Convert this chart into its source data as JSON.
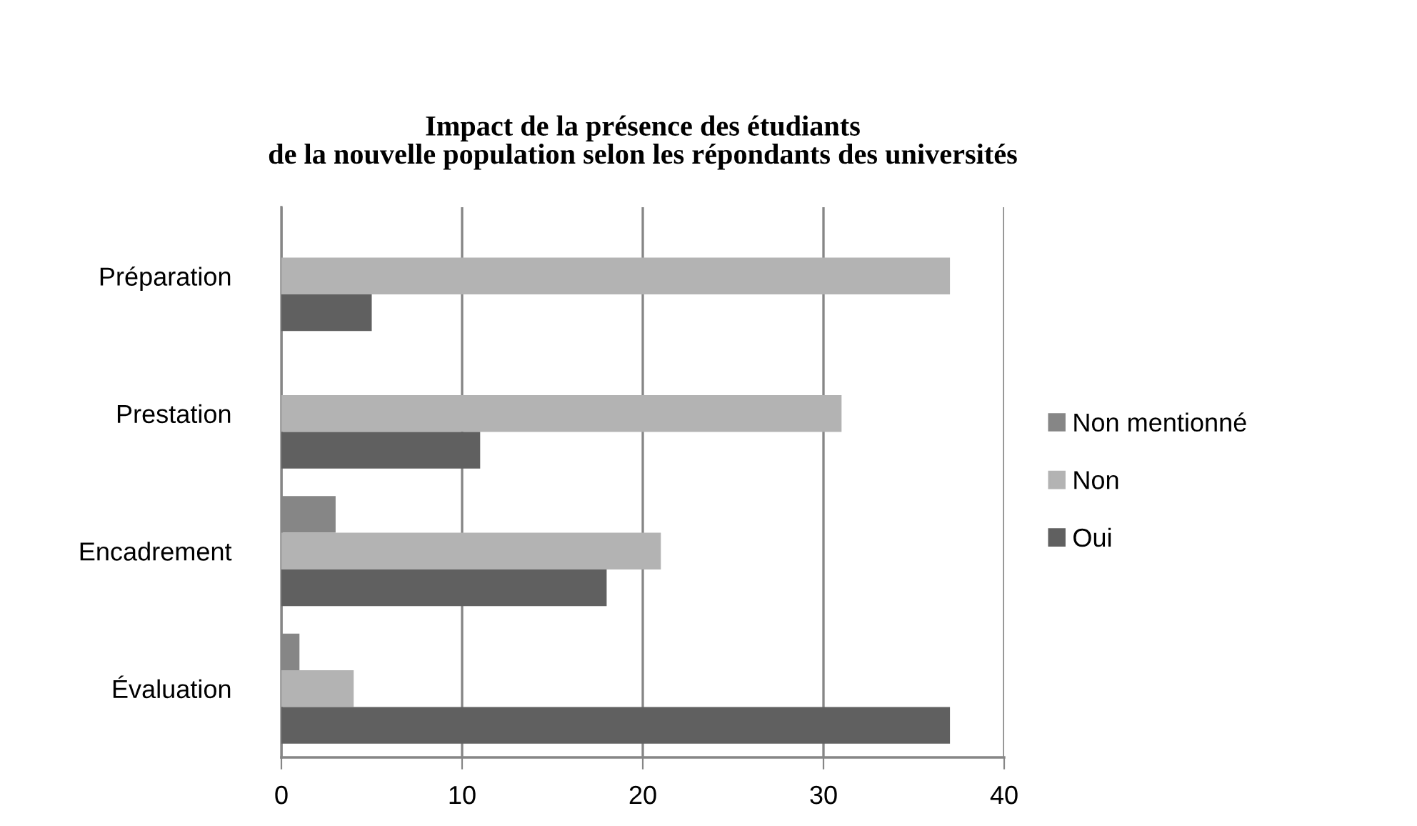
{
  "chart_data": {
    "type": "bar",
    "orientation": "horizontal",
    "title": "Impact de la présence des étudiants\nde la nouvelle population selon les répondants des universités",
    "categories": [
      "Préparation",
      "Prestation",
      "Encadrement",
      "Évaluation"
    ],
    "series": [
      {
        "name": "Non mentionné",
        "color": "#868686",
        "values": [
          0,
          0,
          3,
          1
        ]
      },
      {
        "name": "Non",
        "color": "#b3b3b3",
        "values": [
          37,
          31,
          21,
          4
        ]
      },
      {
        "name": "Oui",
        "color": "#606060",
        "values": [
          5,
          11,
          18,
          37
        ]
      }
    ],
    "xlim": [
      0,
      40
    ],
    "xticks": [
      0,
      10,
      20,
      30,
      40
    ],
    "grid": "x",
    "legend": "right"
  }
}
